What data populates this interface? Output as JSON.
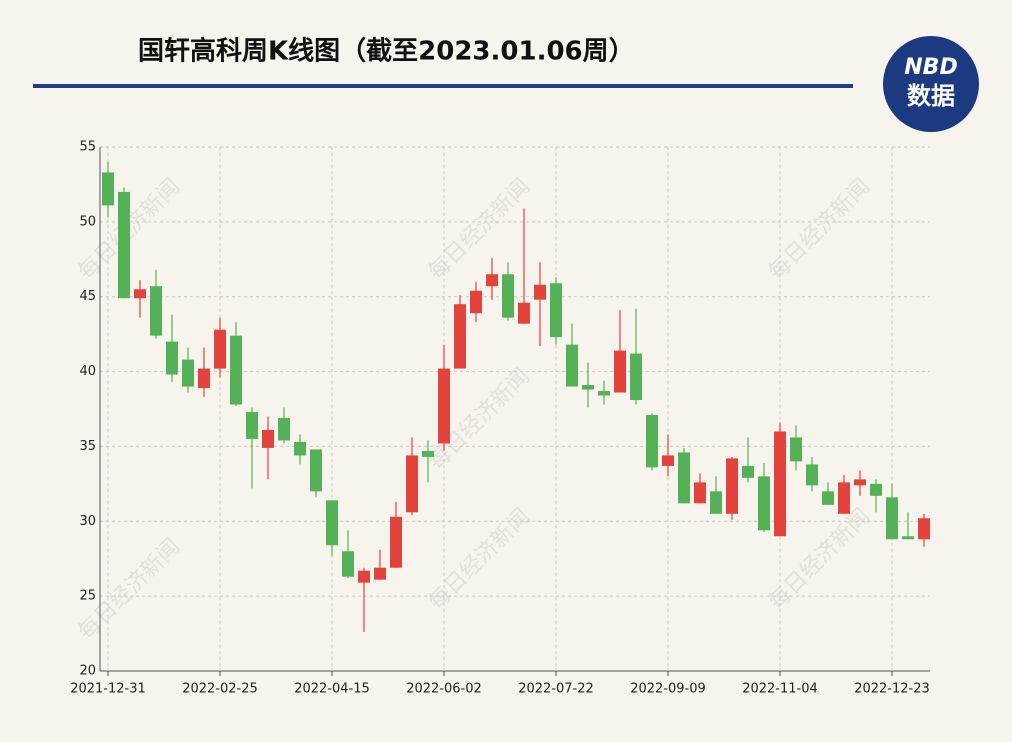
{
  "chart_data": {
    "type": "candlestick",
    "title": "国轩高科周K线图（截至2023.01.06周）",
    "watermark": "每日经济新闻",
    "logo": {
      "top": "NBD",
      "bottom": "数据"
    },
    "categories": [
      "2021-12-31",
      null,
      null,
      null,
      null,
      null,
      null,
      "2022-02-25",
      null,
      null,
      null,
      null,
      null,
      null,
      "2022-04-15",
      null,
      null,
      null,
      null,
      null,
      null,
      "2022-06-02",
      null,
      null,
      null,
      null,
      null,
      null,
      "2022-07-22",
      null,
      null,
      null,
      null,
      null,
      null,
      "2022-09-09",
      null,
      null,
      null,
      null,
      null,
      null,
      "2022-11-04",
      null,
      null,
      null,
      null,
      null,
      null,
      "2022-12-23",
      null,
      null
    ],
    "open": [
      53.3,
      52.0,
      44.9,
      45.7,
      42.0,
      40.8,
      38.9,
      40.2,
      42.4,
      37.3,
      34.9,
      36.9,
      35.3,
      34.8,
      31.4,
      28.0,
      25.9,
      26.1,
      26.9,
      30.6,
      34.7,
      35.2,
      40.2,
      43.9,
      45.7,
      46.5,
      43.2,
      44.8,
      45.9,
      41.8,
      39.1,
      38.7,
      38.6,
      41.2,
      37.1,
      33.7,
      34.6,
      31.2,
      32.0,
      30.5,
      33.7,
      33.0,
      29.0,
      35.6,
      33.8,
      32.0,
      30.5,
      32.4,
      32.5,
      31.6,
      29.0,
      28.8
    ],
    "high": [
      54.0,
      52.3,
      46.1,
      46.8,
      43.8,
      41.6,
      41.6,
      43.6,
      43.3,
      37.6,
      37.0,
      37.6,
      35.8,
      34.8,
      31.4,
      29.4,
      26.9,
      28.1,
      31.3,
      35.6,
      35.4,
      41.8,
      45.1,
      46.0,
      47.6,
      47.3,
      50.9,
      47.3,
      46.3,
      43.2,
      40.6,
      39.4,
      44.1,
      44.2,
      37.2,
      35.8,
      34.9,
      33.2,
      33.0,
      34.3,
      35.6,
      33.9,
      36.6,
      36.4,
      34.3,
      32.6,
      33.1,
      33.4,
      32.8,
      32.5,
      30.6,
      30.5
    ],
    "low": [
      50.3,
      44.9,
      43.6,
      42.2,
      39.3,
      38.6,
      38.3,
      39.6,
      37.7,
      32.2,
      32.8,
      35.2,
      33.8,
      31.6,
      27.7,
      26.2,
      22.6,
      26.1,
      26.9,
      30.4,
      32.6,
      34.7,
      40.2,
      43.3,
      44.8,
      43.4,
      43.2,
      41.7,
      41.8,
      39.0,
      37.6,
      37.8,
      38.6,
      37.8,
      33.4,
      33.0,
      31.2,
      31.2,
      30.5,
      30.1,
      32.6,
      29.3,
      29.0,
      33.4,
      32.0,
      31.1,
      30.5,
      31.7,
      30.6,
      28.8,
      28.8,
      28.3
    ],
    "close": [
      51.1,
      44.9,
      45.5,
      42.4,
      39.8,
      39.0,
      40.2,
      42.8,
      37.8,
      35.5,
      36.1,
      35.4,
      34.4,
      32.0,
      28.4,
      26.3,
      26.7,
      26.9,
      30.3,
      34.4,
      34.3,
      40.2,
      44.5,
      45.4,
      46.5,
      43.6,
      44.6,
      45.8,
      42.3,
      39.0,
      38.8,
      38.4,
      41.4,
      38.1,
      33.6,
      34.4,
      31.2,
      32.6,
      30.5,
      34.2,
      32.9,
      29.4,
      36.0,
      34.0,
      32.4,
      31.1,
      32.6,
      32.8,
      31.7,
      28.8,
      28.8,
      30.2
    ],
    "up_color": "#e3433d",
    "down_color": "#55b157",
    "ylim": [
      20,
      55
    ],
    "yticks": [
      20,
      25,
      30,
      35,
      40,
      45,
      50,
      55
    ],
    "grid": true
  }
}
